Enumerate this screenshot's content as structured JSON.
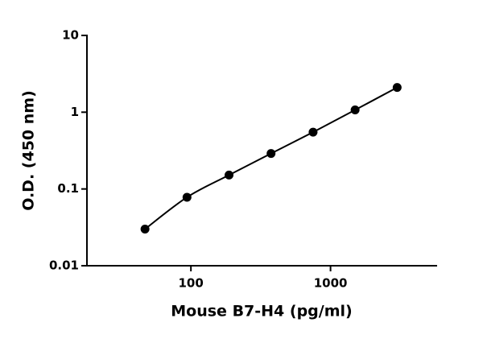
{
  "chart_data": {
    "type": "scatter",
    "x_label": "Mouse B7-H4 (pg/ml)",
    "y_label": "O.D. (450 nm)",
    "x_log": true,
    "y_log": true,
    "xlim": [
      18,
      5800
    ],
    "xticks": [
      100,
      1000
    ],
    "ylim": [
      0.01,
      10
    ],
    "yticks": [
      0.01,
      0.1,
      1,
      10
    ],
    "color": "#000000",
    "fit_line": true,
    "x": [
      46.9,
      93.75,
      187.5,
      375,
      750,
      1500,
      3000
    ],
    "values": [
      0.03,
      0.078,
      0.152,
      0.29,
      0.55,
      1.07,
      2.1
    ]
  }
}
